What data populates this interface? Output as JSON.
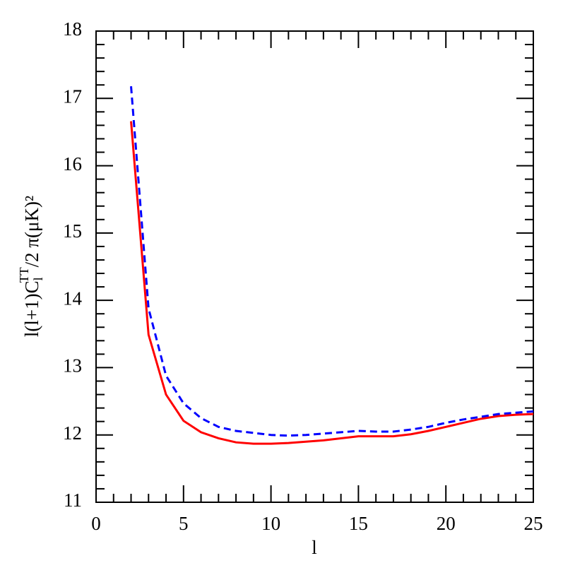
{
  "chart_data": {
    "type": "line",
    "xlabel": "l",
    "ylabel": {
      "main": "l(l+1)C",
      "sub": "l",
      "sup": "TT",
      "rest": "/2 π(μK)²"
    },
    "x": [
      2,
      3,
      4,
      5,
      6,
      7,
      8,
      9,
      10,
      11,
      12,
      13,
      14,
      15,
      16,
      17,
      18,
      19,
      20,
      21,
      22,
      23,
      24,
      25
    ],
    "series": [
      {
        "color": "#ff0000",
        "dash": false,
        "values": [
          16.66,
          13.49,
          12.6,
          12.21,
          12.04,
          11.95,
          11.89,
          11.87,
          11.87,
          11.88,
          11.9,
          11.92,
          11.95,
          11.98,
          11.98,
          11.98,
          12.01,
          12.06,
          12.12,
          12.18,
          12.24,
          12.28,
          12.3,
          12.31
        ]
      },
      {
        "color": "#0000ff",
        "dash": true,
        "values": [
          17.18,
          13.88,
          12.88,
          12.47,
          12.25,
          12.12,
          12.06,
          12.03,
          12.0,
          11.99,
          12.0,
          12.02,
          12.04,
          12.06,
          12.05,
          12.05,
          12.08,
          12.12,
          12.18,
          12.23,
          12.27,
          12.31,
          12.33,
          12.35
        ]
      }
    ],
    "xlim": [
      0,
      25
    ],
    "ylim": [
      11,
      18
    ],
    "xticks": [
      0,
      5,
      10,
      15,
      20,
      25
    ],
    "yticks": [
      11,
      12,
      13,
      14,
      15,
      16,
      17,
      18
    ],
    "xminorticks": [
      1,
      2,
      3,
      4,
      6,
      7,
      8,
      9,
      11,
      12,
      13,
      14,
      16,
      17,
      18,
      19,
      21,
      22,
      23,
      24
    ],
    "yminorticks": [
      11.2,
      11.4,
      11.6,
      11.8,
      12.2,
      12.4,
      12.6,
      12.8,
      13.2,
      13.4,
      13.6,
      13.8,
      14.2,
      14.4,
      14.6,
      14.8,
      15.2,
      15.4,
      15.6,
      15.8,
      16.2,
      16.4,
      16.6,
      16.8,
      17.2,
      17.4,
      17.6,
      17.8
    ]
  }
}
